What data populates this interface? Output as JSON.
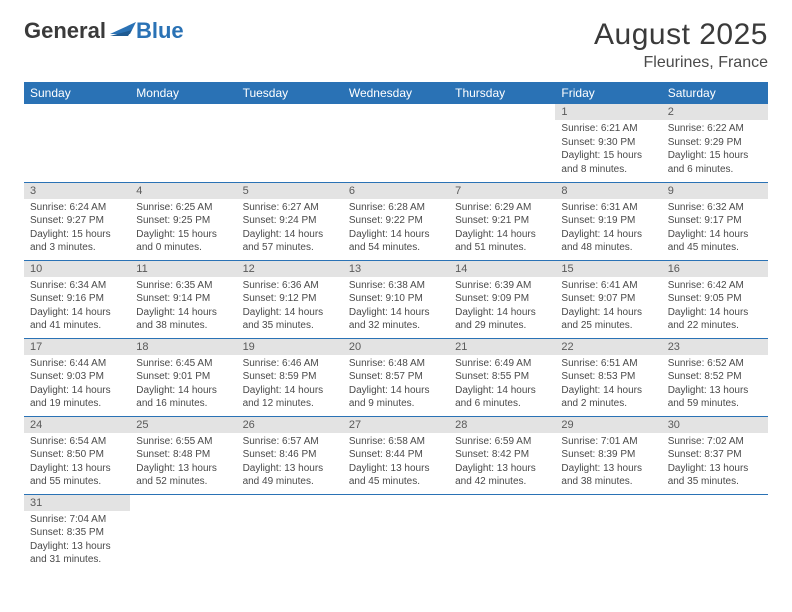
{
  "logo": {
    "text_general": "General",
    "text_blue": "Blue"
  },
  "title": {
    "month_year": "August 2025",
    "location": "Fleurines, France"
  },
  "colors": {
    "header_bg": "#2a72b5",
    "header_text": "#ffffff",
    "daynum_bg": "#e3e3e3",
    "border": "#2a72b5",
    "text": "#4a4a4a"
  },
  "fonts": {
    "title_size": 30,
    "location_size": 16,
    "day_header_size": 12,
    "daynum_size": 11,
    "cell_size": 10
  },
  "day_headers": [
    "Sunday",
    "Monday",
    "Tuesday",
    "Wednesday",
    "Thursday",
    "Friday",
    "Saturday"
  ],
  "weeks": [
    [
      null,
      null,
      null,
      null,
      null,
      {
        "n": "1",
        "sunrise": "Sunrise: 6:21 AM",
        "sunset": "Sunset: 9:30 PM",
        "daylight": "Daylight: 15 hours and 8 minutes."
      },
      {
        "n": "2",
        "sunrise": "Sunrise: 6:22 AM",
        "sunset": "Sunset: 9:29 PM",
        "daylight": "Daylight: 15 hours and 6 minutes."
      }
    ],
    [
      {
        "n": "3",
        "sunrise": "Sunrise: 6:24 AM",
        "sunset": "Sunset: 9:27 PM",
        "daylight": "Daylight: 15 hours and 3 minutes."
      },
      {
        "n": "4",
        "sunrise": "Sunrise: 6:25 AM",
        "sunset": "Sunset: 9:25 PM",
        "daylight": "Daylight: 15 hours and 0 minutes."
      },
      {
        "n": "5",
        "sunrise": "Sunrise: 6:27 AM",
        "sunset": "Sunset: 9:24 PM",
        "daylight": "Daylight: 14 hours and 57 minutes."
      },
      {
        "n": "6",
        "sunrise": "Sunrise: 6:28 AM",
        "sunset": "Sunset: 9:22 PM",
        "daylight": "Daylight: 14 hours and 54 minutes."
      },
      {
        "n": "7",
        "sunrise": "Sunrise: 6:29 AM",
        "sunset": "Sunset: 9:21 PM",
        "daylight": "Daylight: 14 hours and 51 minutes."
      },
      {
        "n": "8",
        "sunrise": "Sunrise: 6:31 AM",
        "sunset": "Sunset: 9:19 PM",
        "daylight": "Daylight: 14 hours and 48 minutes."
      },
      {
        "n": "9",
        "sunrise": "Sunrise: 6:32 AM",
        "sunset": "Sunset: 9:17 PM",
        "daylight": "Daylight: 14 hours and 45 minutes."
      }
    ],
    [
      {
        "n": "10",
        "sunrise": "Sunrise: 6:34 AM",
        "sunset": "Sunset: 9:16 PM",
        "daylight": "Daylight: 14 hours and 41 minutes."
      },
      {
        "n": "11",
        "sunrise": "Sunrise: 6:35 AM",
        "sunset": "Sunset: 9:14 PM",
        "daylight": "Daylight: 14 hours and 38 minutes."
      },
      {
        "n": "12",
        "sunrise": "Sunrise: 6:36 AM",
        "sunset": "Sunset: 9:12 PM",
        "daylight": "Daylight: 14 hours and 35 minutes."
      },
      {
        "n": "13",
        "sunrise": "Sunrise: 6:38 AM",
        "sunset": "Sunset: 9:10 PM",
        "daylight": "Daylight: 14 hours and 32 minutes."
      },
      {
        "n": "14",
        "sunrise": "Sunrise: 6:39 AM",
        "sunset": "Sunset: 9:09 PM",
        "daylight": "Daylight: 14 hours and 29 minutes."
      },
      {
        "n": "15",
        "sunrise": "Sunrise: 6:41 AM",
        "sunset": "Sunset: 9:07 PM",
        "daylight": "Daylight: 14 hours and 25 minutes."
      },
      {
        "n": "16",
        "sunrise": "Sunrise: 6:42 AM",
        "sunset": "Sunset: 9:05 PM",
        "daylight": "Daylight: 14 hours and 22 minutes."
      }
    ],
    [
      {
        "n": "17",
        "sunrise": "Sunrise: 6:44 AM",
        "sunset": "Sunset: 9:03 PM",
        "daylight": "Daylight: 14 hours and 19 minutes."
      },
      {
        "n": "18",
        "sunrise": "Sunrise: 6:45 AM",
        "sunset": "Sunset: 9:01 PM",
        "daylight": "Daylight: 14 hours and 16 minutes."
      },
      {
        "n": "19",
        "sunrise": "Sunrise: 6:46 AM",
        "sunset": "Sunset: 8:59 PM",
        "daylight": "Daylight: 14 hours and 12 minutes."
      },
      {
        "n": "20",
        "sunrise": "Sunrise: 6:48 AM",
        "sunset": "Sunset: 8:57 PM",
        "daylight": "Daylight: 14 hours and 9 minutes."
      },
      {
        "n": "21",
        "sunrise": "Sunrise: 6:49 AM",
        "sunset": "Sunset: 8:55 PM",
        "daylight": "Daylight: 14 hours and 6 minutes."
      },
      {
        "n": "22",
        "sunrise": "Sunrise: 6:51 AM",
        "sunset": "Sunset: 8:53 PM",
        "daylight": "Daylight: 14 hours and 2 minutes."
      },
      {
        "n": "23",
        "sunrise": "Sunrise: 6:52 AM",
        "sunset": "Sunset: 8:52 PM",
        "daylight": "Daylight: 13 hours and 59 minutes."
      }
    ],
    [
      {
        "n": "24",
        "sunrise": "Sunrise: 6:54 AM",
        "sunset": "Sunset: 8:50 PM",
        "daylight": "Daylight: 13 hours and 55 minutes."
      },
      {
        "n": "25",
        "sunrise": "Sunrise: 6:55 AM",
        "sunset": "Sunset: 8:48 PM",
        "daylight": "Daylight: 13 hours and 52 minutes."
      },
      {
        "n": "26",
        "sunrise": "Sunrise: 6:57 AM",
        "sunset": "Sunset: 8:46 PM",
        "daylight": "Daylight: 13 hours and 49 minutes."
      },
      {
        "n": "27",
        "sunrise": "Sunrise: 6:58 AM",
        "sunset": "Sunset: 8:44 PM",
        "daylight": "Daylight: 13 hours and 45 minutes."
      },
      {
        "n": "28",
        "sunrise": "Sunrise: 6:59 AM",
        "sunset": "Sunset: 8:42 PM",
        "daylight": "Daylight: 13 hours and 42 minutes."
      },
      {
        "n": "29",
        "sunrise": "Sunrise: 7:01 AM",
        "sunset": "Sunset: 8:39 PM",
        "daylight": "Daylight: 13 hours and 38 minutes."
      },
      {
        "n": "30",
        "sunrise": "Sunrise: 7:02 AM",
        "sunset": "Sunset: 8:37 PM",
        "daylight": "Daylight: 13 hours and 35 minutes."
      }
    ],
    [
      {
        "n": "31",
        "sunrise": "Sunrise: 7:04 AM",
        "sunset": "Sunset: 8:35 PM",
        "daylight": "Daylight: 13 hours and 31 minutes."
      },
      null,
      null,
      null,
      null,
      null,
      null
    ]
  ]
}
